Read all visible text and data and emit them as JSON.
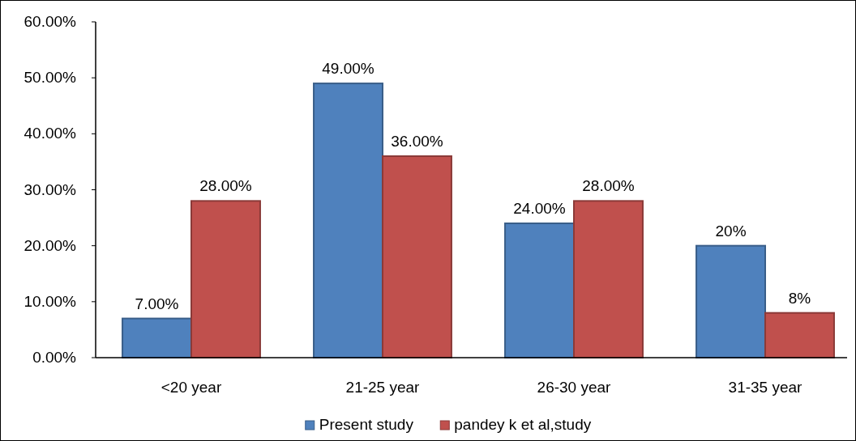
{
  "chart_data": {
    "type": "bar",
    "categories": [
      "<20 year",
      "21-25 year",
      "26-30 year",
      "31-35 year"
    ],
    "series": [
      {
        "name": "Present study",
        "color": "#4f81bd",
        "values": [
          7,
          49,
          24,
          20
        ],
        "value_labels": [
          "7.00%",
          "49.00%",
          "24.00%",
          "20%"
        ]
      },
      {
        "name": "pandey k et al,study",
        "color": "#c0504d",
        "values": [
          28,
          36,
          28,
          8
        ],
        "value_labels": [
          "28.00%",
          "36.00%",
          "28.00%",
          "8%"
        ]
      }
    ],
    "ylim": [
      0,
      60
    ],
    "yticks": [
      {
        "value": 0,
        "label": "0.00%"
      },
      {
        "value": 10,
        "label": "10.00%"
      },
      {
        "value": 20,
        "label": "20.00%"
      },
      {
        "value": 30,
        "label": "30.00%"
      },
      {
        "value": 40,
        "label": "40.00%"
      },
      {
        "value": 50,
        "label": "50.00%"
      },
      {
        "value": 60,
        "label": "60.00%"
      }
    ],
    "grid": false,
    "legend": "bottom"
  }
}
